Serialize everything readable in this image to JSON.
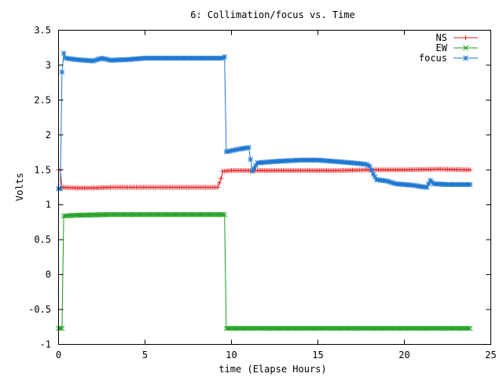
{
  "chart_data": {
    "type": "line",
    "title": "6: Collimation/focus vs. Time",
    "xlabel": "time (Elapse Hours)",
    "ylabel": "Volts",
    "xlim": [
      0,
      25
    ],
    "ylim": [
      -1,
      3.5
    ],
    "xticks": [
      0,
      5,
      10,
      15,
      20,
      25
    ],
    "xtick_labels": [
      "0",
      "5",
      "10",
      "15",
      "20",
      "25"
    ],
    "yticks": [
      -1,
      -0.5,
      0,
      0.5,
      1,
      1.5,
      2,
      2.5,
      3,
      3.5
    ],
    "ytick_labels": [
      "-1",
      "-0.5",
      "0",
      "0.5",
      "1",
      "1.5",
      "2",
      "2.5",
      "3",
      "3.5"
    ],
    "grid": false,
    "legend_position": "top-right",
    "sample_interval_hours": 0.1,
    "series": [
      {
        "name": "NS",
        "color": "#e41a1c",
        "marker": "plus",
        "breakpoints": [
          [
            0.0,
            1.5
          ],
          [
            0.1,
            1.5
          ],
          [
            0.2,
            1.25
          ],
          [
            1.0,
            1.24
          ],
          [
            2.0,
            1.24
          ],
          [
            3.0,
            1.25
          ],
          [
            4.0,
            1.25
          ],
          [
            5.0,
            1.25
          ],
          [
            6.0,
            1.25
          ],
          [
            7.0,
            1.25
          ],
          [
            8.0,
            1.25
          ],
          [
            9.2,
            1.25
          ],
          [
            9.4,
            1.38
          ],
          [
            9.5,
            1.48
          ],
          [
            10.0,
            1.49
          ],
          [
            12.0,
            1.49
          ],
          [
            14.0,
            1.49
          ],
          [
            16.0,
            1.49
          ],
          [
            18.0,
            1.5
          ],
          [
            20.0,
            1.5
          ],
          [
            22.0,
            1.51
          ],
          [
            23.8,
            1.5
          ]
        ]
      },
      {
        "name": "EW",
        "color": "#1a9e1a",
        "marker": "x",
        "breakpoints": [
          [
            0.0,
            -0.77
          ],
          [
            0.2,
            -0.77
          ],
          [
            0.3,
            0.84
          ],
          [
            1.0,
            0.85
          ],
          [
            3.0,
            0.86
          ],
          [
            5.0,
            0.86
          ],
          [
            7.0,
            0.86
          ],
          [
            9.6,
            0.86
          ],
          [
            9.7,
            -0.77
          ],
          [
            12.0,
            -0.77
          ],
          [
            15.0,
            -0.77
          ],
          [
            18.0,
            -0.77
          ],
          [
            21.0,
            -0.77
          ],
          [
            23.8,
            -0.77
          ]
        ]
      },
      {
        "name": "focus",
        "color": "#1e78d2",
        "marker": "star",
        "breakpoints": [
          [
            0.0,
            1.23
          ],
          [
            0.1,
            1.23
          ],
          [
            0.2,
            2.9
          ],
          [
            0.3,
            3.17
          ],
          [
            0.4,
            3.1
          ],
          [
            1.0,
            3.08
          ],
          [
            2.0,
            3.06
          ],
          [
            2.5,
            3.1
          ],
          [
            3.0,
            3.07
          ],
          [
            4.0,
            3.08
          ],
          [
            5.0,
            3.1
          ],
          [
            6.0,
            3.1
          ],
          [
            7.0,
            3.1
          ],
          [
            8.0,
            3.1
          ],
          [
            9.5,
            3.1
          ],
          [
            9.6,
            3.12
          ],
          [
            9.7,
            1.76
          ],
          [
            10.5,
            1.8
          ],
          [
            11.0,
            1.82
          ],
          [
            11.1,
            1.65
          ],
          [
            11.2,
            1.48
          ],
          [
            11.5,
            1.6
          ],
          [
            12.5,
            1.62
          ],
          [
            14.0,
            1.64
          ],
          [
            15.0,
            1.64
          ],
          [
            16.0,
            1.62
          ],
          [
            17.0,
            1.6
          ],
          [
            17.8,
            1.58
          ],
          [
            18.0,
            1.55
          ],
          [
            18.2,
            1.44
          ],
          [
            18.4,
            1.36
          ],
          [
            19.0,
            1.34
          ],
          [
            19.5,
            1.3
          ],
          [
            20.5,
            1.28
          ],
          [
            21.0,
            1.26
          ],
          [
            21.3,
            1.25
          ],
          [
            21.5,
            1.35
          ],
          [
            21.7,
            1.3
          ],
          [
            22.5,
            1.29
          ],
          [
            23.8,
            1.29
          ]
        ]
      }
    ]
  }
}
